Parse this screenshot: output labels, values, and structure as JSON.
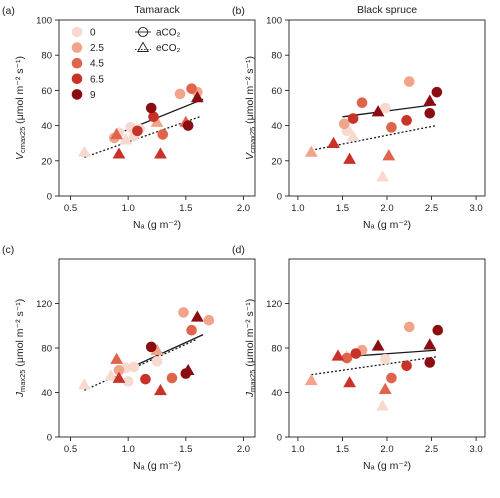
{
  "figure": {
    "legend": {
      "level_items": [
        {
          "label": "0",
          "color": "#f7d9cf"
        },
        {
          "label": "2.5",
          "color": "#f2a48a"
        },
        {
          "label": "4.5",
          "color": "#e0644b"
        },
        {
          "label": "6.5",
          "color": "#c93228"
        },
        {
          "label": "9",
          "color": "#8b0d12"
        }
      ],
      "shape_items": [
        {
          "label": "aCO₂",
          "shape": "circle"
        },
        {
          "label": "eCO₂",
          "shape": "triangle"
        }
      ]
    }
  },
  "chart_data": [
    {
      "panel": "(a)",
      "title": "Tamarack",
      "type": "scatter",
      "xlabel": "Nₐ (g m⁻²)",
      "ylabel": "Vcmax25 (μmol m⁻² s⁻¹)",
      "xlim": [
        0.4,
        2.1
      ],
      "ylim": [
        0,
        100
      ],
      "xticks": [
        "0.5",
        "1.0",
        "1.5",
        "2.0"
      ],
      "yticks": [
        "0",
        "20",
        "40",
        "60",
        "80",
        "100"
      ],
      "points": [
        {
          "x": 0.62,
          "y": 25,
          "level": 0,
          "shape": "triangle"
        },
        {
          "x": 0.92,
          "y": 36,
          "level": 0,
          "shape": "circle"
        },
        {
          "x": 0.98,
          "y": 32,
          "level": 0,
          "shape": "triangle"
        },
        {
          "x": 1.02,
          "y": 39,
          "level": 0,
          "shape": "circle"
        },
        {
          "x": 1.05,
          "y": 34,
          "level": 0,
          "shape": "circle"
        },
        {
          "x": 1.1,
          "y": 38,
          "level": 0,
          "shape": "circle"
        },
        {
          "x": 0.88,
          "y": 33,
          "level": 1,
          "shape": "circle"
        },
        {
          "x": 1.25,
          "y": 42,
          "level": 1,
          "shape": "triangle"
        },
        {
          "x": 1.45,
          "y": 58,
          "level": 1,
          "shape": "circle"
        },
        {
          "x": 1.6,
          "y": 59,
          "level": 1,
          "shape": "circle"
        },
        {
          "x": 0.9,
          "y": 35,
          "level": 2,
          "shape": "triangle"
        },
        {
          "x": 1.3,
          "y": 35,
          "level": 2,
          "shape": "circle"
        },
        {
          "x": 1.55,
          "y": 61,
          "level": 2,
          "shape": "circle"
        },
        {
          "x": 1.5,
          "y": 42,
          "level": 2,
          "shape": "triangle"
        },
        {
          "x": 0.92,
          "y": 24,
          "level": 3,
          "shape": "triangle"
        },
        {
          "x": 1.08,
          "y": 37,
          "level": 3,
          "shape": "circle"
        },
        {
          "x": 1.28,
          "y": 24,
          "level": 3,
          "shape": "triangle"
        },
        {
          "x": 1.22,
          "y": 45,
          "level": 3,
          "shape": "circle"
        },
        {
          "x": 1.2,
          "y": 50,
          "level": 4,
          "shape": "circle"
        },
        {
          "x": 1.52,
          "y": 40,
          "level": 4,
          "shape": "circle"
        },
        {
          "x": 1.6,
          "y": 56,
          "level": 4,
          "shape": "triangle"
        }
      ],
      "fit_lines": [
        {
          "style": "solid",
          "x": [
            0.97,
            1.65
          ],
          "y": [
            37,
            55
          ]
        },
        {
          "style": "dotted",
          "x": [
            0.62,
            1.62
          ],
          "y": [
            22,
            45
          ]
        }
      ]
    },
    {
      "panel": "(b)",
      "title": "Black spruce",
      "type": "scatter",
      "xlabel": "Nₐ (g m⁻²)",
      "ylabel": "Vcmax25 (μmol m⁻² s⁻¹)",
      "xlim": [
        0.9,
        3.1
      ],
      "ylim": [
        0,
        100
      ],
      "xticks": [
        "1.0",
        "1.5",
        "2.0",
        "2.5",
        "3.0"
      ],
      "yticks": [
        "0",
        "20",
        "40",
        "60",
        "80",
        "100"
      ],
      "points": [
        {
          "x": 1.55,
          "y": 37,
          "level": 0,
          "shape": "circle"
        },
        {
          "x": 1.62,
          "y": 34,
          "level": 0,
          "shape": "triangle"
        },
        {
          "x": 1.95,
          "y": 11,
          "level": 0,
          "shape": "triangle"
        },
        {
          "x": 1.98,
          "y": 50,
          "level": 0,
          "shape": "circle"
        },
        {
          "x": 1.15,
          "y": 25,
          "level": 1,
          "shape": "triangle"
        },
        {
          "x": 1.52,
          "y": 41,
          "level": 1,
          "shape": "circle"
        },
        {
          "x": 2.25,
          "y": 65,
          "level": 1,
          "shape": "circle"
        },
        {
          "x": 1.72,
          "y": 53,
          "level": 2,
          "shape": "circle"
        },
        {
          "x": 2.02,
          "y": 23,
          "level": 2,
          "shape": "triangle"
        },
        {
          "x": 2.05,
          "y": 39,
          "level": 2,
          "shape": "circle"
        },
        {
          "x": 1.4,
          "y": 30,
          "level": 3,
          "shape": "triangle"
        },
        {
          "x": 1.58,
          "y": 21,
          "level": 3,
          "shape": "triangle"
        },
        {
          "x": 1.62,
          "y": 44,
          "level": 3,
          "shape": "circle"
        },
        {
          "x": 2.22,
          "y": 43,
          "level": 3,
          "shape": "circle"
        },
        {
          "x": 1.9,
          "y": 48,
          "level": 4,
          "shape": "triangle"
        },
        {
          "x": 2.48,
          "y": 54,
          "level": 4,
          "shape": "triangle"
        },
        {
          "x": 2.48,
          "y": 47,
          "level": 4,
          "shape": "circle"
        },
        {
          "x": 2.56,
          "y": 59,
          "level": 4,
          "shape": "circle"
        }
      ],
      "fit_lines": [
        {
          "style": "solid",
          "x": [
            1.5,
            2.55
          ],
          "y": [
            45,
            52
          ]
        },
        {
          "style": "dotted",
          "x": [
            1.15,
            2.55
          ],
          "y": [
            26,
            40
          ]
        }
      ]
    },
    {
      "panel": "(c)",
      "type": "scatter",
      "xlabel": "Nₐ (g m⁻²)",
      "ylabel": "Jmax25 (μmol m⁻² s⁻¹)",
      "xlim": [
        0.4,
        2.1
      ],
      "ylim": [
        0,
        160
      ],
      "xticks": [
        "0.5",
        "1.0",
        "1.5",
        "2.0"
      ],
      "yticks": [
        "0",
        "40",
        "80",
        "120"
      ],
      "points": [
        {
          "x": 0.62,
          "y": 47,
          "level": 0,
          "shape": "triangle"
        },
        {
          "x": 0.85,
          "y": 55,
          "level": 0,
          "shape": "triangle"
        },
        {
          "x": 0.98,
          "y": 62,
          "level": 0,
          "shape": "circle"
        },
        {
          "x": 1.0,
          "y": 50,
          "level": 0,
          "shape": "circle"
        },
        {
          "x": 1.05,
          "y": 63,
          "level": 0,
          "shape": "circle"
        },
        {
          "x": 1.25,
          "y": 68,
          "level": 0,
          "shape": "circle"
        },
        {
          "x": 0.92,
          "y": 60,
          "level": 1,
          "shape": "circle"
        },
        {
          "x": 1.25,
          "y": 78,
          "level": 1,
          "shape": "triangle"
        },
        {
          "x": 1.48,
          "y": 112,
          "level": 1,
          "shape": "circle"
        },
        {
          "x": 1.7,
          "y": 105,
          "level": 1,
          "shape": "circle"
        },
        {
          "x": 0.9,
          "y": 70,
          "level": 2,
          "shape": "triangle"
        },
        {
          "x": 1.38,
          "y": 53,
          "level": 2,
          "shape": "circle"
        },
        {
          "x": 1.55,
          "y": 96,
          "level": 2,
          "shape": "circle"
        },
        {
          "x": 0.92,
          "y": 53,
          "level": 3,
          "shape": "triangle"
        },
        {
          "x": 1.15,
          "y": 52,
          "level": 3,
          "shape": "circle"
        },
        {
          "x": 1.28,
          "y": 42,
          "level": 3,
          "shape": "triangle"
        },
        {
          "x": 1.2,
          "y": 81,
          "level": 4,
          "shape": "circle"
        },
        {
          "x": 1.5,
          "y": 57,
          "level": 4,
          "shape": "circle"
        },
        {
          "x": 1.52,
          "y": 60,
          "level": 4,
          "shape": "triangle"
        },
        {
          "x": 1.6,
          "y": 108,
          "level": 4,
          "shape": "triangle"
        }
      ],
      "fit_lines": [
        {
          "style": "solid",
          "x": [
            0.97,
            1.65
          ],
          "y": [
            60,
            92
          ]
        },
        {
          "style": "dotted",
          "x": [
            0.62,
            1.6
          ],
          "y": [
            42,
            88
          ]
        }
      ]
    },
    {
      "panel": "(d)",
      "type": "scatter",
      "xlabel": "Nₐ (g m⁻²)",
      "ylabel": "Jmax25 (μmol m⁻² s⁻¹)",
      "xlim": [
        0.9,
        3.1
      ],
      "ylim": [
        0,
        160
      ],
      "xticks": [
        "1.0",
        "1.5",
        "2.0",
        "2.5",
        "3.0"
      ],
      "yticks": [
        "0",
        "40",
        "80",
        "120"
      ],
      "points": [
        {
          "x": 1.55,
          "y": 73,
          "level": 0,
          "shape": "triangle"
        },
        {
          "x": 1.95,
          "y": 28,
          "level": 0,
          "shape": "triangle"
        },
        {
          "x": 1.98,
          "y": 70,
          "level": 0,
          "shape": "circle"
        },
        {
          "x": 1.15,
          "y": 51,
          "level": 1,
          "shape": "triangle"
        },
        {
          "x": 1.72,
          "y": 78,
          "level": 1,
          "shape": "circle"
        },
        {
          "x": 2.25,
          "y": 99,
          "level": 1,
          "shape": "circle"
        },
        {
          "x": 1.55,
          "y": 71,
          "level": 2,
          "shape": "circle"
        },
        {
          "x": 1.98,
          "y": 43,
          "level": 2,
          "shape": "triangle"
        },
        {
          "x": 2.05,
          "y": 53,
          "level": 2,
          "shape": "circle"
        },
        {
          "x": 1.45,
          "y": 73,
          "level": 3,
          "shape": "triangle"
        },
        {
          "x": 1.58,
          "y": 49,
          "level": 3,
          "shape": "triangle"
        },
        {
          "x": 1.65,
          "y": 75,
          "level": 3,
          "shape": "circle"
        },
        {
          "x": 2.22,
          "y": 64,
          "level": 3,
          "shape": "circle"
        },
        {
          "x": 1.9,
          "y": 82,
          "level": 4,
          "shape": "triangle"
        },
        {
          "x": 2.48,
          "y": 83,
          "level": 4,
          "shape": "triangle"
        },
        {
          "x": 2.48,
          "y": 67,
          "level": 4,
          "shape": "circle"
        },
        {
          "x": 2.57,
          "y": 96,
          "level": 4,
          "shape": "circle"
        }
      ],
      "fit_lines": [
        {
          "style": "solid",
          "x": [
            1.5,
            2.55
          ],
          "y": [
            72,
            78
          ]
        },
        {
          "style": "dotted",
          "x": [
            1.15,
            2.55
          ],
          "y": [
            56,
            72
          ]
        }
      ]
    }
  ]
}
